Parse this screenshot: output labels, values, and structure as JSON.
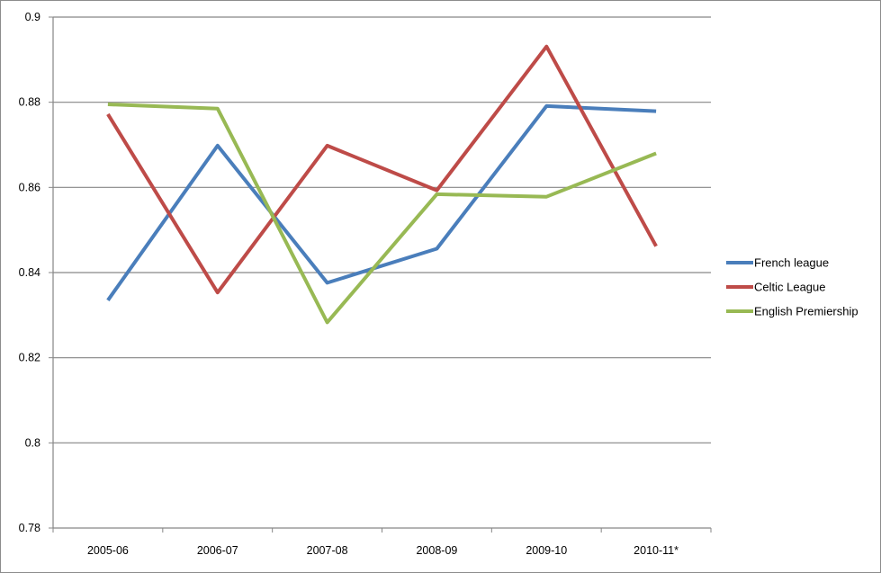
{
  "chart_data": {
    "type": "line",
    "title": "",
    "xlabel": "",
    "ylabel": "",
    "categories": [
      "2005-06",
      "2006-07",
      "2007-08",
      "2008-09",
      "2009-10",
      "2010-11*"
    ],
    "ylim": [
      0.78,
      0.9
    ],
    "yticks": [
      0.78,
      0.8,
      0.82,
      0.84,
      0.86,
      0.88,
      0.9
    ],
    "grid": true,
    "legend_position": "right",
    "series": [
      {
        "name": "French league",
        "color": "#4a7ebb",
        "values": [
          0.8335,
          0.8698,
          0.8376,
          0.8456,
          0.8791,
          0.8779
        ]
      },
      {
        "name": "Celtic League",
        "color": "#be4b48",
        "values": [
          0.8772,
          0.8353,
          0.8698,
          0.8593,
          0.8931,
          0.8462
        ]
      },
      {
        "name": "English Premiership",
        "color": "#98b954",
        "values": [
          0.8795,
          0.8785,
          0.8283,
          0.8584,
          0.8578,
          0.868
        ]
      }
    ]
  }
}
